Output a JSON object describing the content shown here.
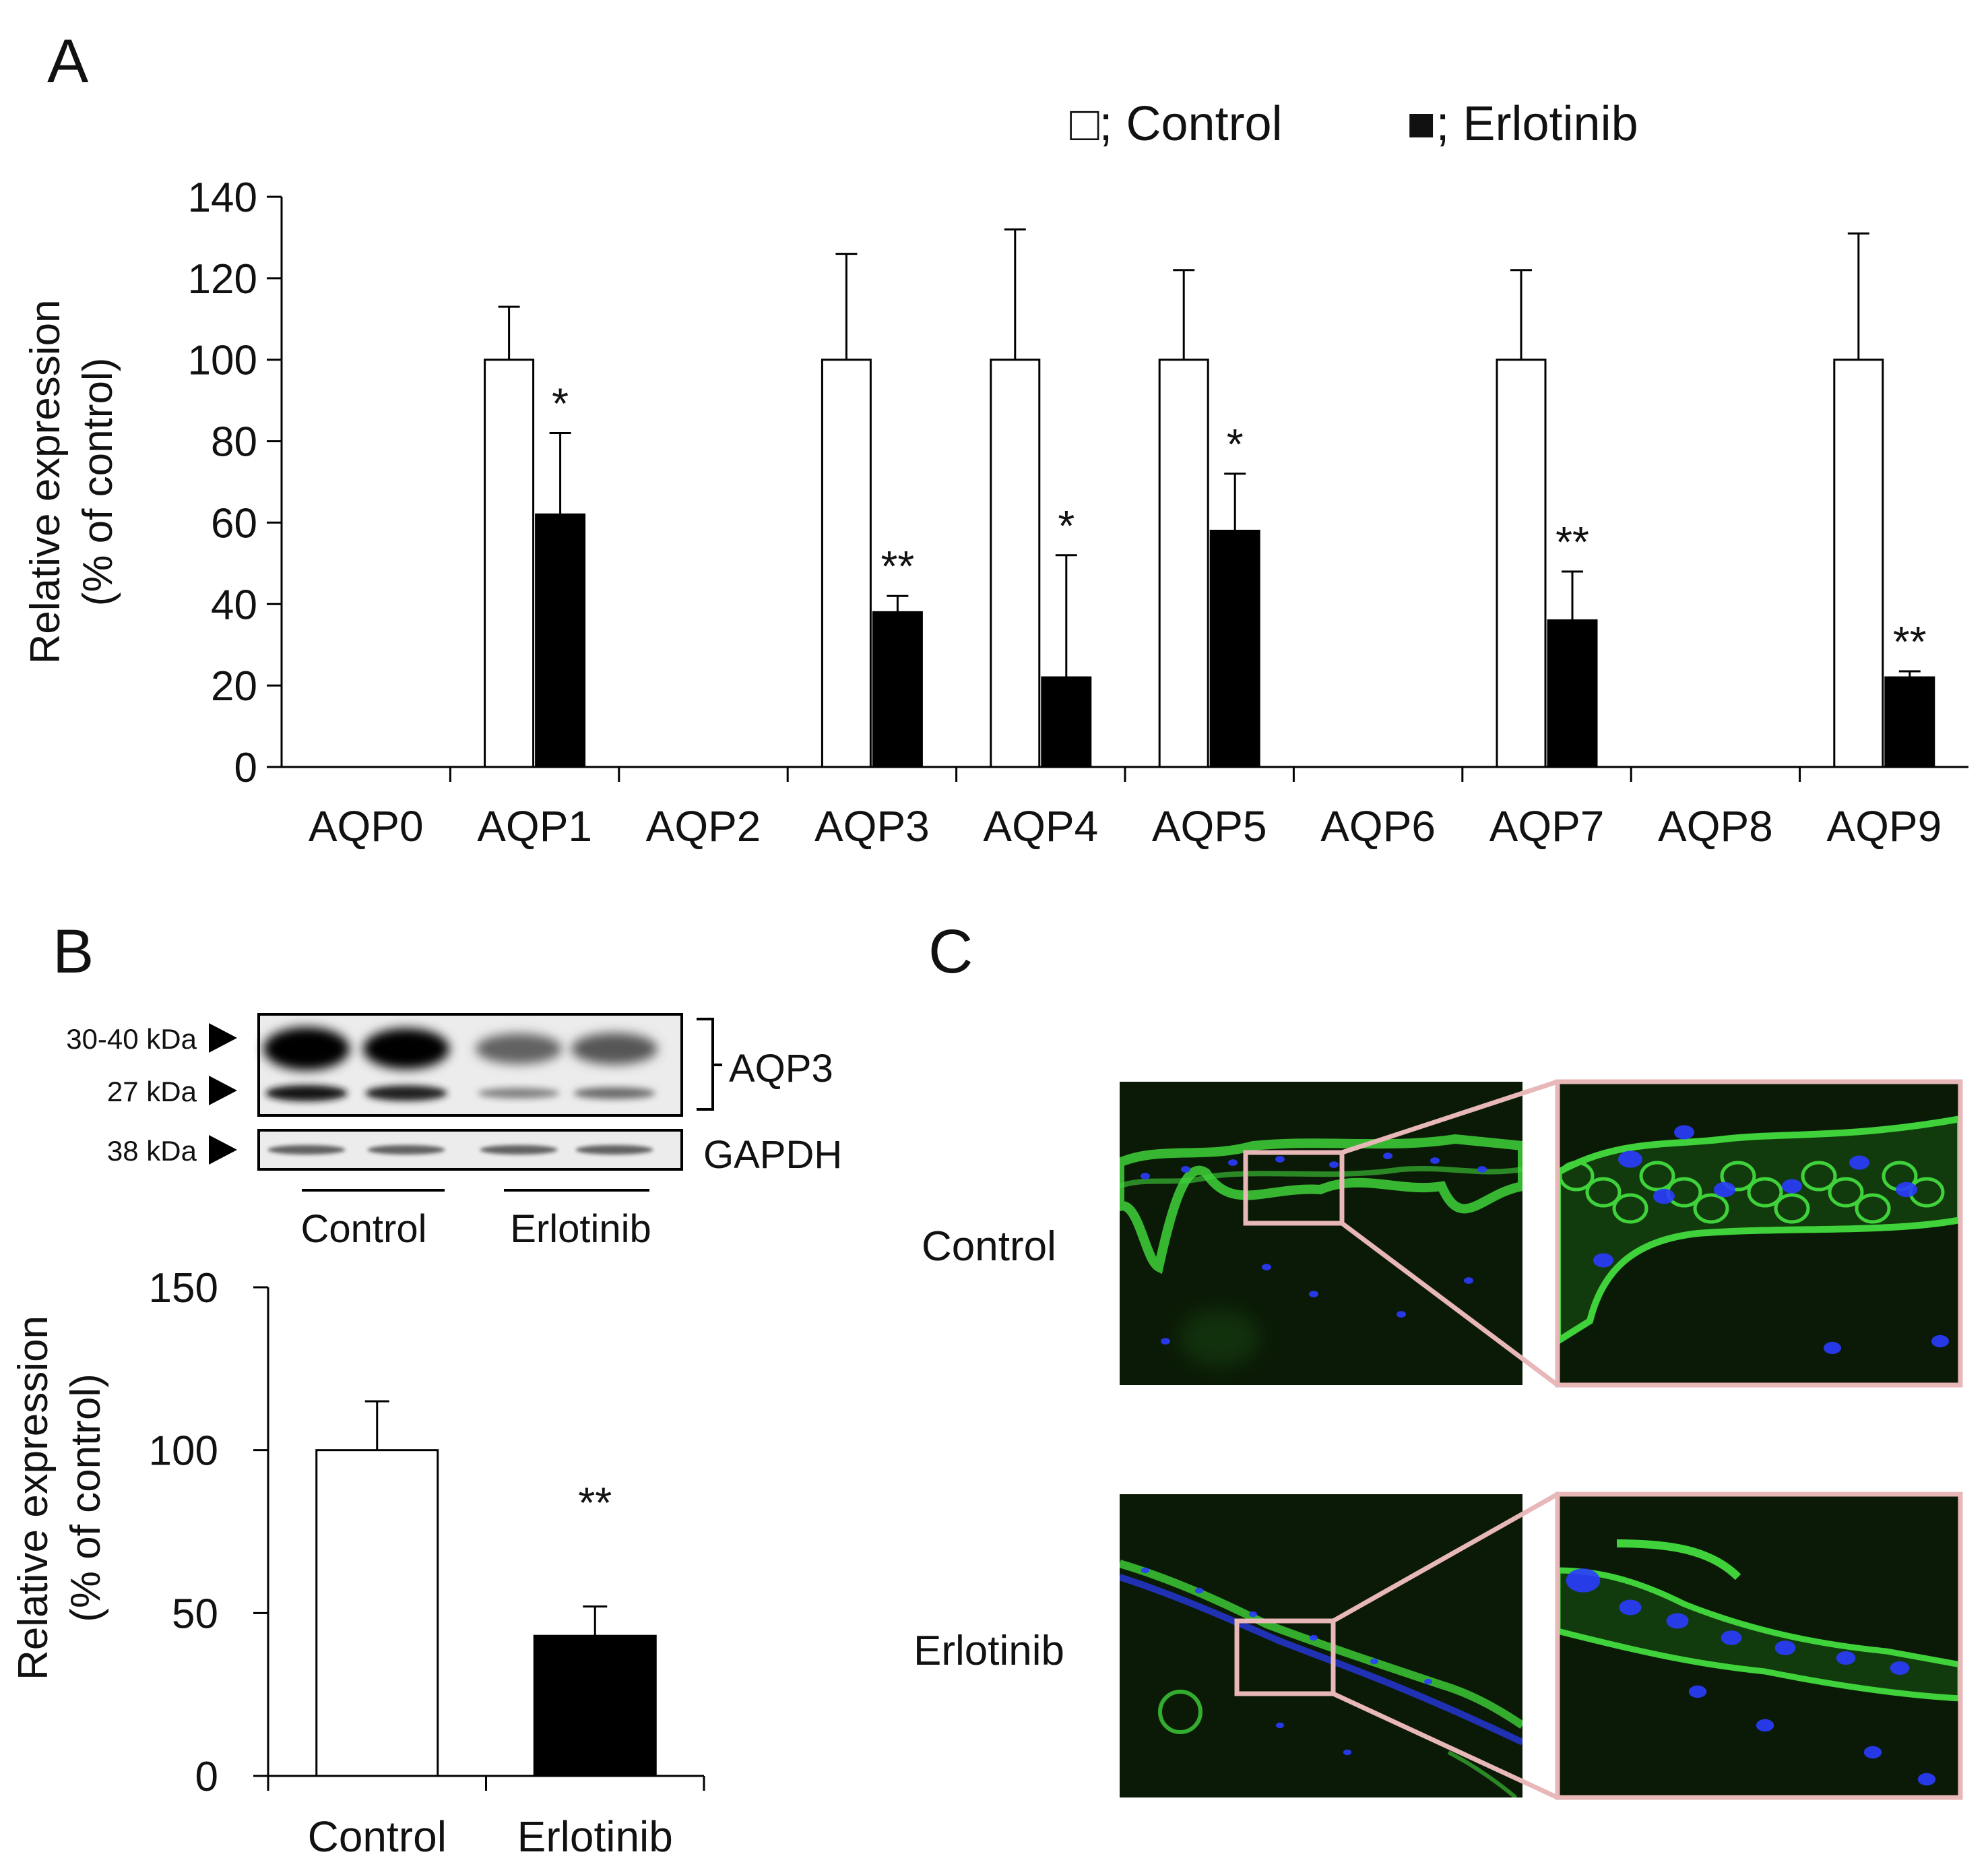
{
  "panels": {
    "a": {
      "letter": "A"
    },
    "b": {
      "letter": "B"
    },
    "c": {
      "letter": "C"
    }
  },
  "legend": {
    "control": "□; Control",
    "erlotinib": "■; Erlotinib"
  },
  "colors": {
    "control_fill": "#ffffff",
    "erlotinib_fill": "#000000",
    "axis": "#000000",
    "zoom_box": "#e8b7b8",
    "stain_green": "#3fd23a",
    "stain_blue": "#2a3cff",
    "tissue_bg": "#0b1a06"
  },
  "chart_data": [
    {
      "id": "panel-a",
      "type": "bar",
      "categories": [
        "AQP0",
        "AQP1",
        "AQP2",
        "AQP3",
        "AQP4",
        "AQP5",
        "AQP6",
        "AQP7",
        "AQP8",
        "AQP9"
      ],
      "series": [
        {
          "name": "Control",
          "values": [
            null,
            100,
            null,
            100,
            100,
            100,
            null,
            100,
            null,
            100
          ],
          "error": [
            null,
            13,
            null,
            26,
            32,
            22,
            null,
            22,
            null,
            31
          ]
        },
        {
          "name": "Erlotinib",
          "values": [
            null,
            62,
            null,
            38,
            22,
            58,
            null,
            36,
            null,
            22
          ],
          "error": [
            null,
            20,
            null,
            4,
            30,
            14,
            null,
            12,
            null,
            1.5
          ]
        }
      ],
      "significance": [
        null,
        "*",
        null,
        "**",
        "*",
        "*",
        null,
        "**",
        null,
        "**"
      ],
      "ylabel": [
        "Relative expression",
        "(% of control)"
      ],
      "ylim": [
        0,
        140
      ],
      "yticks": [
        0,
        20,
        40,
        60,
        80,
        100,
        120,
        140
      ],
      "legend_position": "top-right",
      "grid": false
    },
    {
      "id": "panel-b",
      "type": "bar",
      "categories": [
        "Control",
        "Erlotinib"
      ],
      "values": [
        100,
        43
      ],
      "error": [
        15,
        9
      ],
      "significance": [
        null,
        "**"
      ],
      "ylabel": [
        "Relative expression",
        "(% of control)"
      ],
      "ylim": [
        0,
        150
      ],
      "yticks": [
        0,
        50,
        100,
        150
      ],
      "grid": false
    }
  ],
  "blot": {
    "markers": [
      "30-40 kDa",
      "27 kDa",
      "38 kDa"
    ],
    "proteins": [
      "AQP3",
      "GAPDH"
    ],
    "groups": [
      "Control",
      "Erlotinib"
    ],
    "aqp3_upper_intensity": [
      1.0,
      0.9,
      0.45,
      0.5
    ],
    "aqp3_lower_intensity": [
      0.75,
      0.7,
      0.25,
      0.35
    ],
    "gapdh_intensity": [
      0.55,
      0.55,
      0.55,
      0.55
    ]
  },
  "micrographs": {
    "rows": [
      "Control",
      "Erlotinib"
    ]
  }
}
